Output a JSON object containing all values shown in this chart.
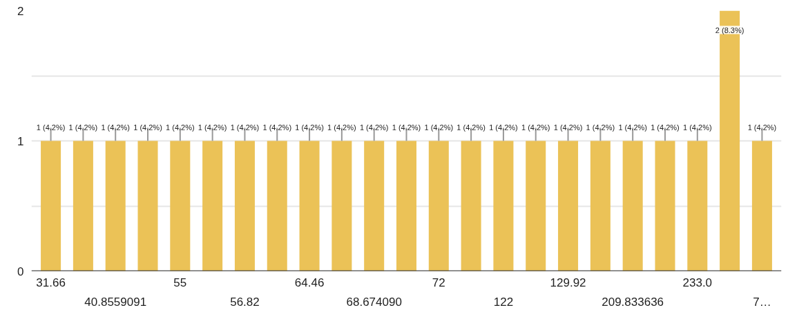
{
  "chart_data": {
    "type": "bar",
    "categories": [
      "31.66",
      null,
      "40.8559091",
      null,
      "55",
      null,
      "56.82",
      null,
      "64.46",
      null,
      "68.674090",
      null,
      "72",
      null,
      "122",
      null,
      "129.92",
      null,
      "209.833636",
      null,
      "233.0",
      null,
      "7…"
    ],
    "values": [
      1,
      1,
      1,
      1,
      1,
      1,
      1,
      1,
      1,
      1,
      1,
      1,
      1,
      1,
      1,
      1,
      1,
      1,
      1,
      1,
      1,
      2,
      1
    ],
    "value_labels": [
      "1 (4.2%)",
      "1 (4.2%)",
      "1 (4.2%)",
      "1 (4.2%)",
      "1 (4.2%)",
      "1 (4.2%)",
      "1 (4.2%)",
      "1 (4.2%)",
      "1 (4.2%)",
      "1 (4.2%)",
      "1 (4.2%)",
      "1 (4.2%)",
      "1 (4.2%)",
      "1 (4.2%)",
      "1 (4.2%)",
      "1 (4.2%)",
      "1 (4.2%)",
      "1 (4.2%)",
      "1 (4.2%)",
      "1 (4.2%)",
      "1 (4.2%)",
      "2 (8.3%)",
      "1 (4.2%)"
    ],
    "color": "#ebc257",
    "ylim": [
      0,
      2
    ],
    "yticks": [
      0,
      {
        "value": 0.5,
        "label": null
      },
      1,
      {
        "value": 1.5,
        "label": null
      },
      2
    ],
    "grid": "y"
  }
}
